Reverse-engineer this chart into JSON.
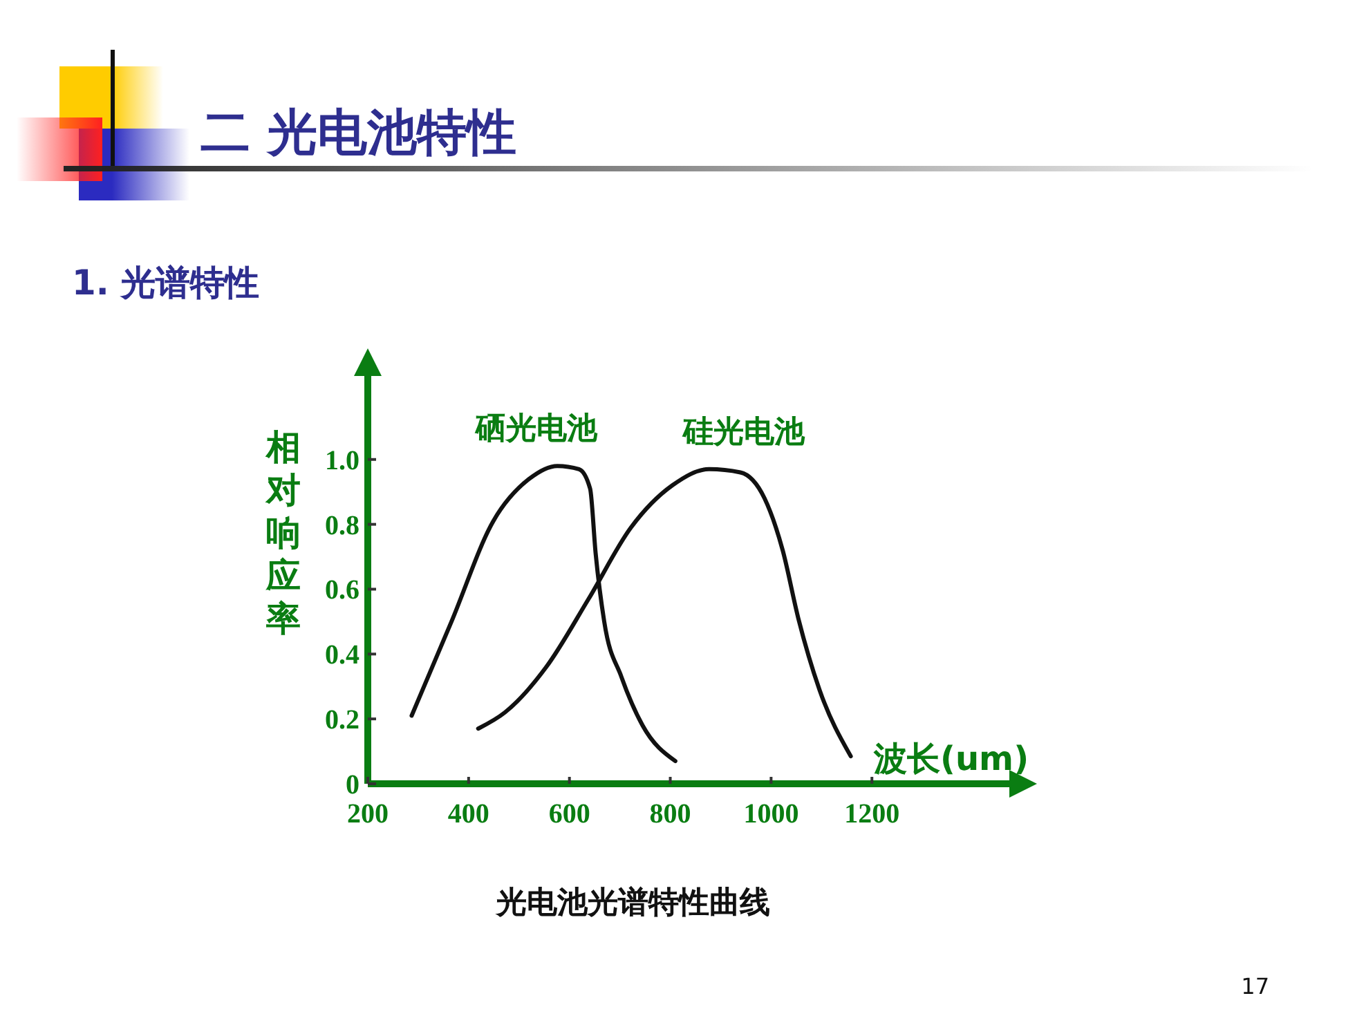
{
  "chart_data": {
    "type": "line",
    "title": "二 光电池特性",
    "subtitle": "1. 光谱特性",
    "xlabel": "波长(um)",
    "ylabel": "相对响应率",
    "annotations": [
      "光电池光谱特性曲线",
      "17"
    ],
    "xlim": [
      200,
      1500
    ],
    "xticks": [
      200,
      400,
      600,
      800,
      1000,
      1200
    ],
    "ylim": [
      0,
      1.3
    ],
    "yticks": [
      0,
      0.2,
      0.4,
      0.6,
      0.8,
      {
        "value": 1,
        "label": "1.0"
      }
    ],
    "grid": false,
    "marker": "none",
    "line_style": "solid",
    "series": [
      {
        "name": "硒光电池",
        "color": "#111111",
        "x": [
          287,
          366,
          449,
          520,
          576,
          619,
          641,
          652,
          669,
          703,
          745,
          810
        ],
        "values": [
          0.21,
          0.5,
          0.81,
          0.94,
          0.98,
          0.97,
          0.91,
          0.71,
          0.5,
          0.33,
          0.18,
          0.07
        ]
      },
      {
        "name": "硅光电池",
        "color": "#111111",
        "x": [
          419,
          472,
          554,
          638,
          722,
          804,
          877,
          939,
          987,
          1023,
          1054,
          1096,
          1158
        ],
        "values": [
          0.17,
          0.22,
          0.36,
          0.57,
          0.79,
          0.92,
          0.97,
          0.96,
          0.88,
          0.72,
          0.51,
          0.29,
          0.085
        ]
      }
    ]
  }
}
